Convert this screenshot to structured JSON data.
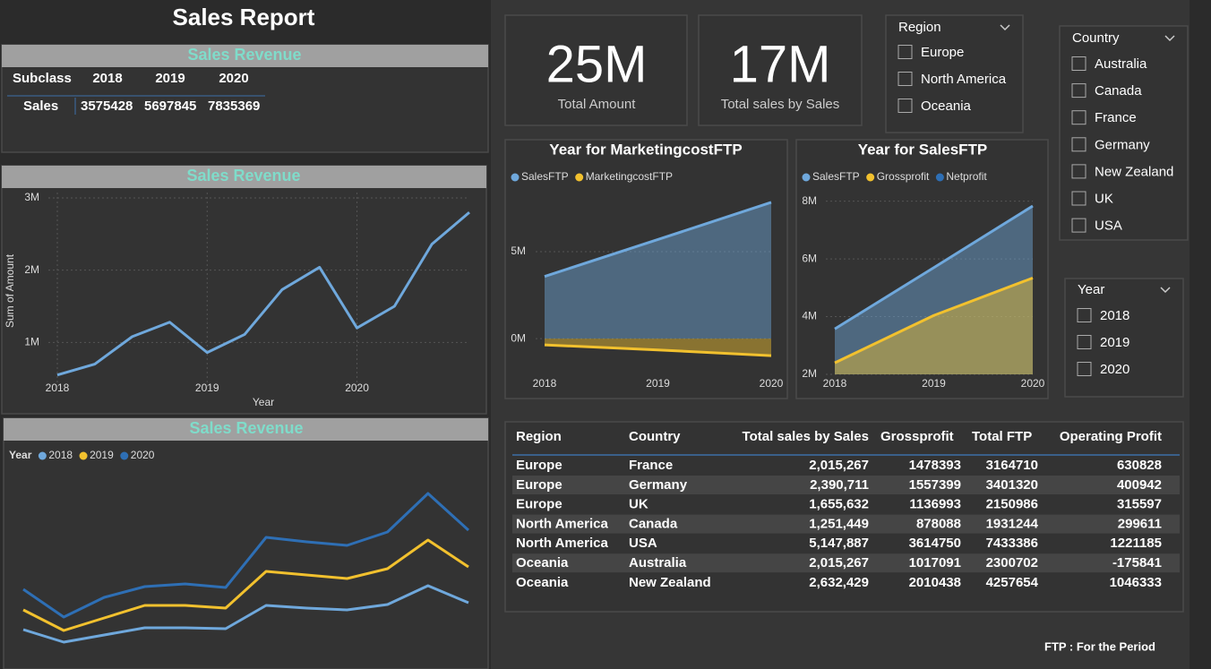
{
  "title": "Sales Report",
  "summary_table": {
    "title": "Sales Revenue",
    "columns": [
      "Subclass",
      "2018",
      "2019",
      "2020"
    ],
    "rows": [
      [
        "Sales",
        "3575428",
        "5697845",
        "7835369"
      ]
    ]
  },
  "cards": [
    {
      "value": "25M",
      "label": "Total Amount"
    },
    {
      "value": "17M",
      "label": "Total sales by Sales"
    }
  ],
  "slicers": [
    {
      "title": "Region",
      "items": [
        "Europe",
        "North America",
        "Oceania"
      ]
    },
    {
      "title": "Country",
      "items": [
        "Australia",
        "Canada",
        "France",
        "Germany",
        "New Zealand",
        "UK",
        "USA"
      ]
    },
    {
      "title": "Year",
      "items": [
        "2018",
        "2019",
        "2020"
      ]
    }
  ],
  "chart_data": [
    {
      "type": "line",
      "title": "Sales Revenue",
      "x_label": "Year",
      "y_label": "Sum of Amount",
      "color": "#6fa8dc",
      "x": [
        2018,
        2018.25,
        2018.5,
        2018.75,
        2019,
        2019.25,
        2019.5,
        2019.75,
        2020,
        2020.25,
        2020.5,
        2020.75
      ],
      "values": [
        550000,
        700000,
        1080000,
        1280000,
        860000,
        1110000,
        1730000,
        2040000,
        1200000,
        1500000,
        2360000,
        2800000
      ],
      "xlim": [
        2018,
        2020.75
      ],
      "xticks": [
        2018,
        2019,
        2020
      ],
      "ylim": [
        0,
        3000000
      ],
      "yticks": [
        {
          "value": 1000000,
          "label": "1M"
        },
        {
          "value": 2000000,
          "label": "2M"
        },
        {
          "value": 3000000,
          "label": "3M"
        }
      ],
      "grid": true
    },
    {
      "type": "line",
      "title": "Sales Revenue",
      "legend_title": "Year",
      "series": [
        {
          "name": "2018",
          "color": "#6fa8dc",
          "values": [
            42,
            28,
            36,
            44,
            44,
            43,
            69,
            66,
            64,
            70,
            91,
            72
          ]
        },
        {
          "name": "2019",
          "color": "#f2c12e",
          "values": [
            64,
            41,
            55,
            69,
            69,
            66,
            107,
            103,
            99,
            110,
            142,
            112
          ]
        },
        {
          "name": "2020",
          "color": "#2e6fb5",
          "values": [
            87,
            56,
            78,
            90,
            93,
            89,
            145,
            140,
            136,
            151,
            194,
            153
          ]
        }
      ]
    },
    {
      "type": "area",
      "title": "Year for MarketingcostFTP",
      "x": [
        2018,
        2019,
        2020
      ],
      "xlim": [
        2018,
        2020
      ],
      "xticks": [
        2018,
        2019,
        2020
      ],
      "ylim": [
        -1900000,
        8400000
      ],
      "yticks": [
        {
          "value": 0,
          "label": "0M"
        },
        {
          "value": 5000000,
          "label": "5M"
        }
      ],
      "grid": true,
      "series": [
        {
          "name": "SalesFTP",
          "color": "#6fa8dc",
          "values": [
            3575428,
            5697845,
            7835369
          ]
        },
        {
          "name": "MarketingcostFTP",
          "color": "#f2c12e",
          "values": [
            -360000,
            -650000,
            -980000
          ]
        }
      ]
    },
    {
      "type": "area",
      "title": "Year for SalesFTP",
      "x": [
        2018,
        2019,
        2020
      ],
      "xlim": [
        2018,
        2020
      ],
      "xticks": [
        2018,
        2019,
        2020
      ],
      "ylim": [
        2000000,
        8300000
      ],
      "yticks": [
        {
          "value": 2000000,
          "label": "2M"
        },
        {
          "value": 4000000,
          "label": "4M"
        },
        {
          "value": 6000000,
          "label": "6M"
        },
        {
          "value": 8000000,
          "label": "8M"
        }
      ],
      "grid": true,
      "series": [
        {
          "name": "SalesFTP",
          "color": "#6fa8dc",
          "values": [
            3575428,
            5697845,
            7835369
          ]
        },
        {
          "name": "Grossprofit",
          "color": "#f2c12e",
          "values": [
            2400000,
            4040000,
            5340000
          ]
        },
        {
          "name": "Netprofit",
          "color": "#2e6fb5",
          "values": [
            null,
            null,
            null
          ]
        }
      ]
    }
  ],
  "detail_table": {
    "columns": [
      "Region",
      "Country",
      "Total sales by Sales",
      "Grossprofit",
      "Total FTP",
      "Operating Profit"
    ],
    "rows": [
      [
        "Europe",
        "France",
        "2,015,267",
        "1478393",
        "3164710",
        "630828"
      ],
      [
        "Europe",
        "Germany",
        "2,390,711",
        "1557399",
        "3401320",
        "400942"
      ],
      [
        "Europe",
        "UK",
        "1,655,632",
        "1136993",
        "2150986",
        "315597"
      ],
      [
        "North America",
        "Canada",
        "1,251,449",
        "878088",
        "1931244",
        "299611"
      ],
      [
        "North America",
        "USA",
        "5,147,887",
        "3614750",
        "7433386",
        "1221185"
      ],
      [
        "Oceania",
        "Australia",
        "2,015,267",
        "1017091",
        "2300702",
        "-175841"
      ],
      [
        "Oceania",
        "New Zealand",
        "2,632,429",
        "2010438",
        "4257654",
        "1046333"
      ]
    ]
  },
  "footnote": "FTP : For the Period"
}
